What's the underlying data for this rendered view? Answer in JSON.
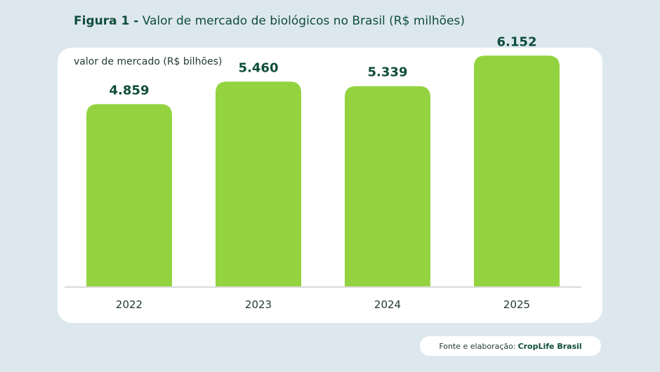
{
  "figure": {
    "label": "Figura 1 -",
    "title": "Valor de mercado de biológicos no Brasil (R$ milhões)"
  },
  "source": {
    "prefix": "Fonte e elaboração:",
    "brand": "CropLife Brasil"
  },
  "colors": {
    "bar": "#94d340",
    "value_label": "#0f4d3a",
    "axis": "#d9d9d9"
  },
  "chart_data": {
    "type": "bar",
    "ylabel": "valor de mercado (R$ bilhões)",
    "categories": [
      "2022",
      "2023",
      "2024",
      "2025"
    ],
    "values": [
      4.859,
      5.46,
      5.339,
      6.152
    ],
    "value_labels": [
      "4.859",
      "5.460",
      "5.339",
      "6.152"
    ],
    "ylim": [
      0,
      7
    ],
    "grid": false,
    "legend": "none"
  }
}
